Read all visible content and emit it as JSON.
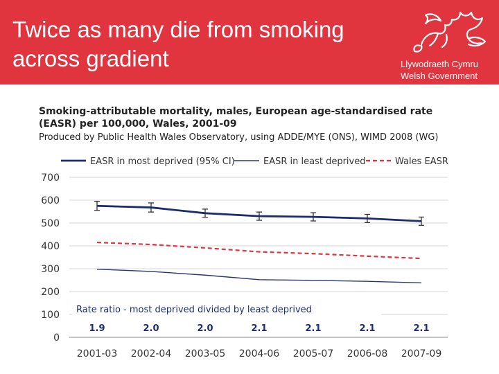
{
  "slide": {
    "title_line1": "Twice as many die from smoking",
    "title_line2": "across gradient"
  },
  "logo": {
    "line1": "Llywodraeth Cymru",
    "line2": "Welsh Government",
    "icon": "welsh-dragon"
  },
  "colors": {
    "header": "#e0343f",
    "most_deprived": "#1c2c6e",
    "least_deprived": "#2a3470",
    "wales": "#e0343f",
    "grid": "#d6d6d6",
    "ratio_text": "#1c2c6e"
  },
  "chart_data": {
    "type": "line",
    "title_line1": "Smoking-attributable mortality, males, European age-standardised rate",
    "title_line2": "(EASR) per 100,000, Wales, 2001-09",
    "subtitle": "Produced by Public Health Wales Observatory, using ADDE/MYE (ONS), WIMD 2008 (WG)",
    "categories": [
      "2001-03",
      "2002-04",
      "2003-05",
      "2004-06",
      "2005-07",
      "2006-08",
      "2007-09"
    ],
    "series": [
      {
        "name": "EASR in most deprived (95% CI)",
        "values": [
          575,
          568,
          543,
          530,
          527,
          520,
          508
        ],
        "ci_low": [
          555,
          548,
          525,
          512,
          509,
          502,
          490
        ],
        "ci_high": [
          595,
          588,
          561,
          548,
          545,
          538,
          526
        ],
        "style": "solid-thick"
      },
      {
        "name": "EASR in least deprived",
        "values": [
          298,
          288,
          272,
          252,
          249,
          245,
          238
        ],
        "style": "solid-thin"
      },
      {
        "name": "Wales EASR",
        "values": [
          415,
          406,
          391,
          374,
          366,
          355,
          345
        ],
        "style": "dashed"
      }
    ],
    "ratio_label": "Rate ratio - most deprived divided by least deprived",
    "ratios": [
      "1.9",
      "2.0",
      "2.0",
      "2.1",
      "2.1",
      "2.1",
      "2.1"
    ],
    "yticks": [
      0,
      100,
      200,
      300,
      400,
      500,
      600,
      700
    ],
    "ylim": [
      0,
      700
    ],
    "xlabel": "",
    "ylabel": ""
  }
}
